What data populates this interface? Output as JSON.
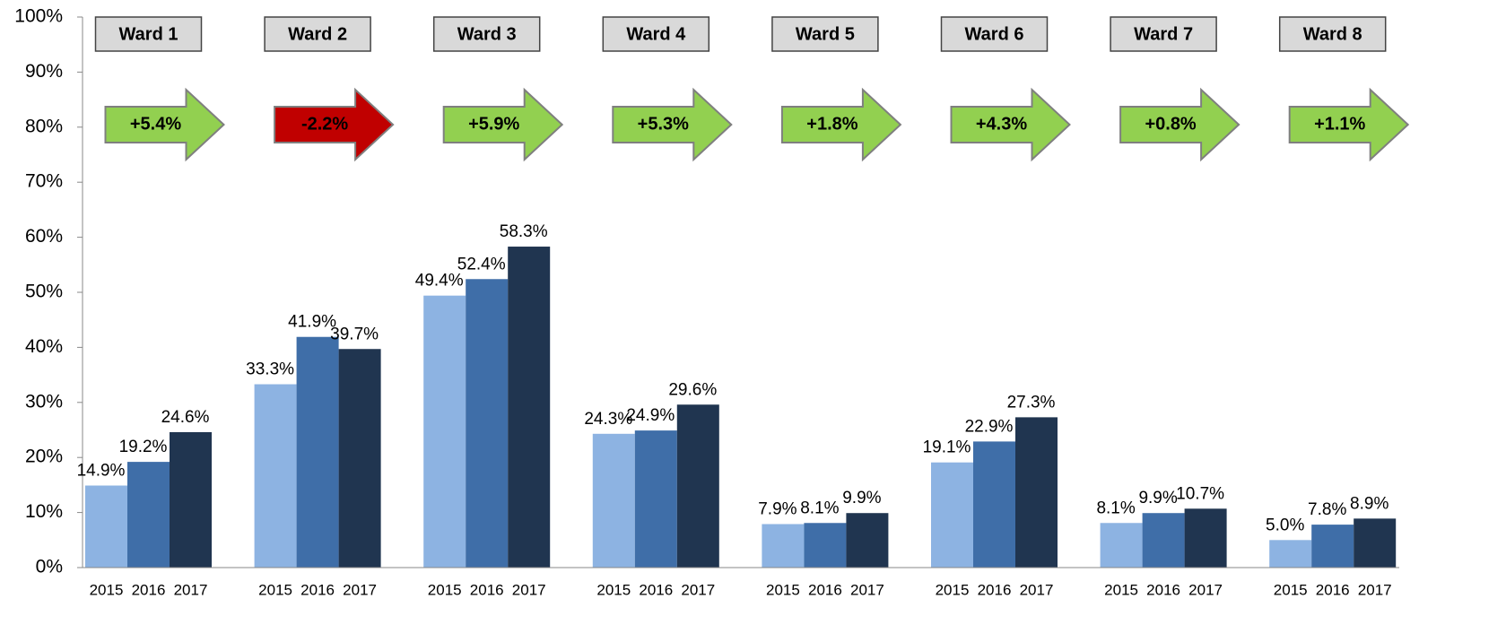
{
  "chart_data": {
    "type": "bar",
    "categories": [
      "Ward 1",
      "Ward 2",
      "Ward 3",
      "Ward 4",
      "Ward 5",
      "Ward 6",
      "Ward 7",
      "Ward 8"
    ],
    "series": [
      {
        "name": "2015",
        "color": "#8db3e2",
        "values": [
          14.9,
          33.3,
          49.4,
          24.3,
          7.9,
          19.1,
          8.1,
          5.0
        ],
        "value_labels": [
          "14.9%",
          "33.3%",
          "49.4%",
          "24.3%",
          "7.9%",
          "19.1%",
          "8.1%",
          "5.0%"
        ]
      },
      {
        "name": "2016",
        "color": "#3f6ea8",
        "values": [
          19.2,
          41.9,
          52.4,
          24.9,
          8.1,
          22.9,
          9.9,
          7.8
        ],
        "value_labels": [
          "19.2%",
          "41.9%",
          "52.4%",
          "24.9%",
          "8.1%",
          "22.9%",
          "9.9%",
          "7.8%"
        ]
      },
      {
        "name": "2017",
        "color": "#203550",
        "values": [
          24.6,
          39.7,
          58.3,
          29.6,
          9.9,
          27.3,
          10.7,
          8.9
        ],
        "value_labels": [
          "24.6%",
          "39.7%",
          "58.3%",
          "29.6%",
          "9.9%",
          "27.3%",
          "10.7%",
          "8.9%"
        ]
      }
    ],
    "changes": [
      {
        "text": "+5.4%",
        "color": "#92d050"
      },
      {
        "text": "-2.2%",
        "color": "#c00000"
      },
      {
        "text": "+5.9%",
        "color": "#92d050"
      },
      {
        "text": "+5.3%",
        "color": "#92d050"
      },
      {
        "text": "+1.8%",
        "color": "#92d050"
      },
      {
        "text": "+4.3%",
        "color": "#92d050"
      },
      {
        "text": "+0.8%",
        "color": "#92d050"
      },
      {
        "text": "+1.1%",
        "color": "#92d050"
      }
    ],
    "ylim": [
      0,
      100
    ],
    "yticks": [
      {
        "value": 0,
        "label": "0%"
      },
      {
        "value": 10,
        "label": "10%"
      },
      {
        "value": 20,
        "label": "20%"
      },
      {
        "value": 30,
        "label": "30%"
      },
      {
        "value": 40,
        "label": "40%"
      },
      {
        "value": 50,
        "label": "50%"
      },
      {
        "value": 60,
        "label": "60%"
      },
      {
        "value": 70,
        "label": "70%"
      },
      {
        "value": 80,
        "label": "80%"
      },
      {
        "value": 90,
        "label": "90%"
      },
      {
        "value": 100,
        "label": "100%"
      }
    ],
    "grid": false
  }
}
